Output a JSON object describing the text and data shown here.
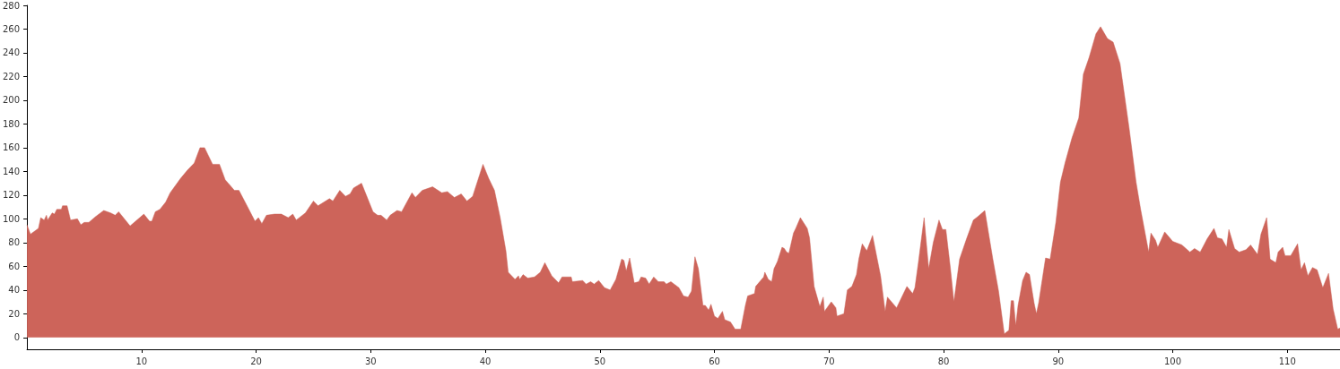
{
  "chart_data": {
    "type": "area",
    "color": "#cd645a",
    "x": [
      0,
      0.3,
      1.0,
      1.2,
      1.5,
      1.7,
      1.8,
      2.2,
      2.4,
      2.6,
      3.0,
      3.1,
      3.5,
      3.8,
      4.4,
      4.7,
      5.0,
      5.4,
      6.0,
      6.7,
      7.3,
      7.7,
      8.0,
      9.0,
      10.2,
      10.7,
      10.9,
      11.2,
      11.6,
      12.1,
      12.5,
      13.4,
      14.0,
      14.6,
      15.1,
      15.5,
      16.2,
      16.8,
      17.3,
      18.1,
      18.5,
      19.1,
      19.9,
      20.2,
      20.5,
      20.9,
      21.6,
      22.2,
      22.8,
      23.2,
      23.5,
      24.3,
      25.0,
      25.4,
      26.4,
      26.7,
      27.3,
      27.8,
      28.2,
      28.5,
      29.2,
      30.2,
      30.6,
      30.9,
      31.4,
      31.7,
      32.3,
      32.7,
      33.6,
      33.9,
      34.5,
      35.4,
      36.2,
      36.7,
      37.3,
      37.9,
      38.4,
      38.9,
      39.8,
      40.3,
      40.8,
      41.3,
      41.8,
      42.0,
      42.6,
      42.9,
      43.0,
      43.3,
      43.7,
      44.3,
      44.8,
      45.2,
      45.8,
      46.4,
      46.7,
      47.5,
      47.6,
      48.5,
      48.8,
      49.2,
      49.5,
      49.9,
      50.4,
      50.9,
      51.4,
      51.9,
      52.1,
      52.3,
      52.6,
      53.0,
      53.4,
      53.6,
      54.0,
      54.3,
      54.7,
      55.1,
      55.6,
      55.8,
      56.2,
      56.9,
      57.3,
      57.7,
      58.0,
      58.3,
      58.6,
      59.0,
      59.2,
      59.5,
      59.7,
      60.0,
      60.3,
      60.7,
      60.9,
      61.4,
      61.8,
      62.3,
      62.7,
      62.9,
      63.5,
      63.6,
      64.3,
      64.4,
      64.7,
      65.0,
      65.2,
      65.5,
      65.9,
      66.1,
      66.3,
      66.5,
      66.9,
      67.1,
      67.5,
      68.1,
      68.3,
      68.7,
      69.2,
      69.5,
      69.6,
      70.2,
      70.6,
      70.7,
      71.3,
      71.6,
      72.0,
      72.4,
      72.6,
      72.9,
      73.3,
      73.8,
      74.5,
      74.9,
      75.1,
      75.9,
      76.8,
      77.3,
      77.5,
      77.8,
      78.3,
      78.7,
      79.1,
      79.6,
      79.9,
      80.2,
      80.6,
      80.9,
      81.4,
      82.0,
      82.6,
      83.0,
      83.6,
      84.3,
      84.8,
      85.3,
      85.7,
      85.9,
      86.1,
      86.3,
      86.5,
      86.9,
      87.2,
      87.5,
      87.9,
      88.1,
      88.3,
      88.9,
      89.3,
      89.8,
      90.2,
      90.6,
      91.2,
      91.8,
      92.2,
      92.7,
      93.3,
      93.7,
      94.3,
      94.8,
      95.4,
      96.2,
      96.8,
      97.2,
      97.9,
      98.1,
      98.5,
      98.7,
      99.3,
      100.0,
      100.8,
      101.5,
      101.9,
      102.4,
      103.0,
      103.6,
      103.9,
      104.3,
      104.7,
      104.9,
      105.4,
      105.8,
      106.4,
      106.8,
      107.4,
      107.7,
      108.2,
      108.5,
      109.0,
      109.2,
      109.6,
      109.8,
      110.3,
      110.9,
      111.2,
      111.5,
      111.8,
      112.2,
      112.6,
      113.1,
      113.6,
      114.0,
      114.4,
      114.6
    ],
    "values": [
      95,
      87,
      92,
      101,
      99,
      103,
      99,
      105,
      104,
      108,
      108,
      111,
      111,
      99,
      100,
      95,
      97,
      97,
      102,
      107,
      105,
      103,
      106,
      94,
      104,
      98,
      98,
      106,
      108,
      114,
      122,
      134,
      141,
      147,
      160,
      160,
      146,
      146,
      133,
      124,
      124,
      113,
      98,
      101,
      96,
      103,
      104,
      104,
      101,
      104,
      99,
      105,
      115,
      111,
      117,
      115,
      124,
      119,
      121,
      126,
      130,
      106,
      103,
      103,
      99,
      103,
      107,
      106,
      122,
      118,
      124,
      127,
      122,
      123,
      118,
      121,
      115,
      119,
      146,
      134,
      124,
      101,
      73,
      55,
      49,
      52,
      49,
      53,
      50,
      51,
      55,
      63,
      52,
      46,
      51,
      51,
      47,
      48,
      45,
      47,
      45,
      48,
      42,
      40,
      49,
      66,
      65,
      56,
      67,
      46,
      47,
      51,
      50,
      45,
      51,
      47,
      47,
      45,
      47,
      42,
      35,
      34,
      39,
      68,
      58,
      27,
      27,
      23,
      28,
      18,
      16,
      22,
      15,
      13,
      7,
      7,
      27,
      35,
      37,
      43,
      51,
      55,
      49,
      47,
      58,
      64,
      76,
      75,
      72,
      71,
      88,
      92,
      101,
      92,
      84,
      43,
      26,
      34,
      22,
      30,
      25,
      18,
      20,
      40,
      43,
      53,
      66,
      79,
      73,
      86,
      52,
      22,
      34,
      25,
      43,
      37,
      42,
      63,
      101,
      58,
      80,
      99,
      91,
      91,
      58,
      30,
      66,
      83,
      99,
      102,
      107,
      66,
      39,
      3,
      6,
      31,
      31,
      10,
      27,
      48,
      55,
      53,
      29,
      20,
      29,
      67,
      66,
      97,
      131,
      147,
      168,
      185,
      222,
      236,
      256,
      262,
      252,
      249,
      231,
      176,
      131,
      108,
      72,
      88,
      82,
      76,
      89,
      81,
      78,
      72,
      75,
      72,
      83,
      92,
      84,
      83,
      76,
      91,
      75,
      72,
      74,
      78,
      70,
      87,
      101,
      66,
      63,
      72,
      76,
      69,
      69,
      79,
      57,
      63,
      52,
      59,
      57,
      42,
      54,
      24,
      7,
      8
    ],
    "xlim": [
      0,
      114.6
    ],
    "xticks": [
      10,
      20,
      30,
      40,
      50,
      60,
      70,
      80,
      90,
      100,
      110
    ],
    "ylim": [
      -10,
      280
    ],
    "yticks": [
      0,
      20,
      40,
      60,
      80,
      100,
      120,
      140,
      160,
      180,
      200,
      220,
      240,
      260,
      280
    ],
    "grid": false,
    "marker": "none"
  }
}
